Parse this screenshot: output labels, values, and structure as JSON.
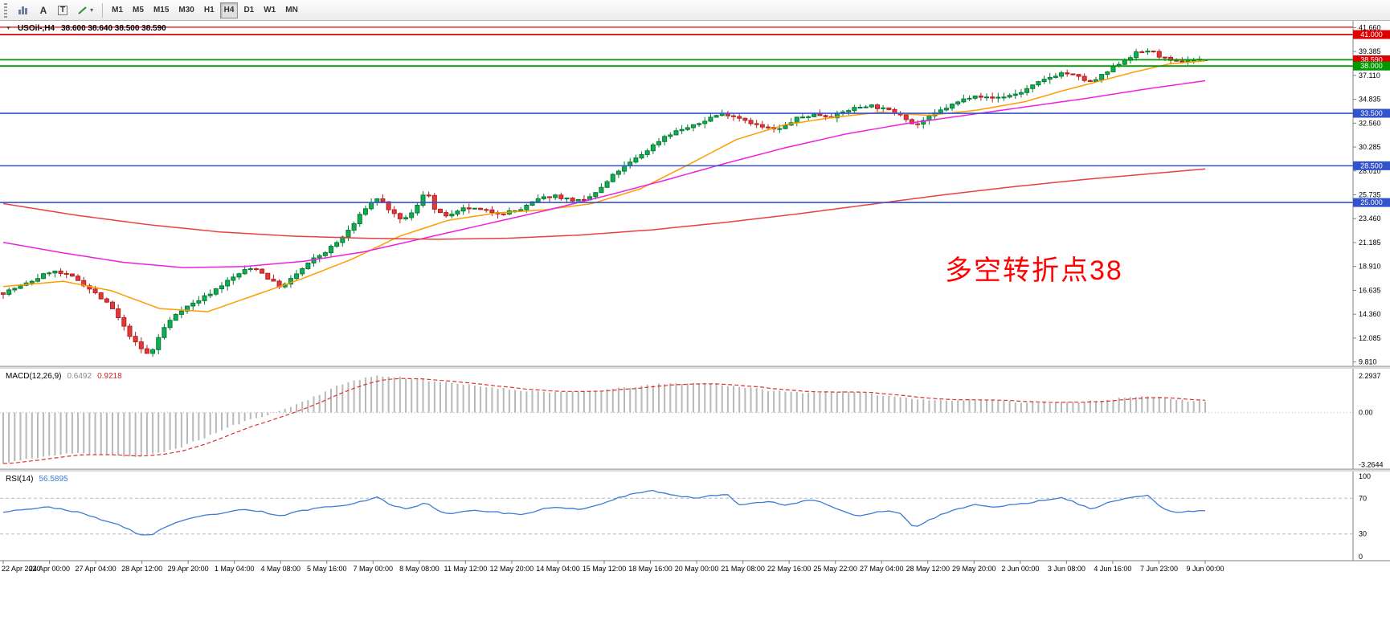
{
  "toolbar": {
    "tools": [
      {
        "name": "bar-chart"
      },
      {
        "name": "text-annotation",
        "glyph": "A"
      },
      {
        "name": "text-box",
        "glyph": "T"
      },
      {
        "name": "trendline",
        "caret": "▾"
      }
    ],
    "timeframes": [
      "M1",
      "M5",
      "M15",
      "M30",
      "H1",
      "H4",
      "D1",
      "W1",
      "MN"
    ],
    "active_timeframe": "H4"
  },
  "chart_header": {
    "symbol_period": "USOil-,H4",
    "ohlc": "38.600 38.640 38.500 38.590"
  },
  "annotation": {
    "text": "多空转折点38",
    "color": "#ff0000"
  },
  "price_axis": {
    "ticks": [
      "41.660",
      "39.385",
      "37.110",
      "34.835",
      "32.560",
      "30.285",
      "28.010",
      "25.735",
      "23.460",
      "21.185",
      "18.910",
      "16.635",
      "14.360",
      "12.085",
      "9.810"
    ],
    "badges": [
      {
        "text": "41.000",
        "price": 41.0,
        "color": "#dd0000"
      },
      {
        "text": "38.590",
        "price": 38.59,
        "color": "#dd0000"
      },
      {
        "text": "38.000",
        "price": 38.0,
        "color": "#009900"
      },
      {
        "text": "33.500",
        "price": 33.5,
        "color": "#3353cd"
      },
      {
        "text": "28.500",
        "price": 28.5,
        "color": "#3353cd"
      },
      {
        "text": "25.000",
        "price": 25.0,
        "color": "#3353cd"
      }
    ]
  },
  "hlines": [
    {
      "price": 41.7,
      "color": "#dd0000",
      "width": 1.3
    },
    {
      "price": 41.0,
      "color": "#dd0000",
      "width": 1.7
    },
    {
      "price": 38.6,
      "color": "#009900",
      "width": 1.8
    },
    {
      "price": 38.0,
      "color": "#009900",
      "width": 1.8
    },
    {
      "price": 33.5,
      "color": "#3353cd",
      "width": 1.6
    },
    {
      "price": 28.5,
      "color": "#3353cd",
      "width": 1.6
    },
    {
      "price": 25.0,
      "color": "#3353cd",
      "width": 1.6
    }
  ],
  "indicators": {
    "macd": {
      "name": "MACD(12,26,9)",
      "value_main": "0.6492",
      "value_signal": "0.9218"
    },
    "rsi": {
      "name": "RSI(14)",
      "value": "56.5895"
    }
  },
  "time_axis": {
    "labels": [
      "22 Apr 2020",
      "24 Apr 00:00",
      "27 Apr 04:00",
      "28 Apr 12:00",
      "29 Apr 20:00",
      "1 May 04:00",
      "4 May 08:00",
      "5 May 16:00",
      "7 May 00:00",
      "8 May 08:00",
      "11 May 12:00",
      "12 May 20:00",
      "14 May 04:00",
      "15 May 12:00",
      "18 May 16:00",
      "20 May 00:00",
      "21 May 08:00",
      "22 May 16:00",
      "25 May 22:00",
      "27 May 04:00",
      "28 May 12:00",
      "29 May 20:00",
      "2 Jun 00:00",
      "3 Jun 08:00",
      "4 Jun 16:00",
      "7 Jun 23:00",
      "9 Jun 00:00"
    ]
  },
  "chart_data": {
    "type": "candlestick",
    "symbol": "USOil-",
    "timeframe": "H4",
    "y_axis_range": [
      9.4,
      42.3
    ],
    "candle_count": 210,
    "wick_amp": 0.45,
    "ohlc_current": {
      "open": 38.6,
      "high": 38.64,
      "low": 38.5,
      "close": 38.59
    },
    "candle_colors": {
      "up": {
        "fill": "#12ad52",
        "border": "#067a34"
      },
      "down": {
        "fill": "#e23a3a",
        "border": "#b51f1f"
      }
    },
    "close_anchors": [
      [
        0,
        16.4
      ],
      [
        0.02,
        17.3
      ],
      [
        0.04,
        18.5
      ],
      [
        0.06,
        17.8
      ],
      [
        0.075,
        16.5
      ],
      [
        0.09,
        15.0
      ],
      [
        0.1,
        13.2
      ],
      [
        0.112,
        11.3
      ],
      [
        0.122,
        10.4
      ],
      [
        0.132,
        12.8
      ],
      [
        0.145,
        14.6
      ],
      [
        0.158,
        15.4
      ],
      [
        0.17,
        16.2
      ],
      [
        0.185,
        17.4
      ],
      [
        0.2,
        18.5
      ],
      [
        0.21,
        18.8
      ],
      [
        0.222,
        17.6
      ],
      [
        0.232,
        16.9
      ],
      [
        0.245,
        18.3
      ],
      [
        0.258,
        19.6
      ],
      [
        0.268,
        20.3
      ],
      [
        0.28,
        21.4
      ],
      [
        0.292,
        23.0
      ],
      [
        0.302,
        24.6
      ],
      [
        0.312,
        25.5
      ],
      [
        0.322,
        24.2
      ],
      [
        0.33,
        23.3
      ],
      [
        0.342,
        24.1
      ],
      [
        0.352,
        26.4
      ],
      [
        0.36,
        24.0
      ],
      [
        0.372,
        23.7
      ],
      [
        0.385,
        24.5
      ],
      [
        0.4,
        24.2
      ],
      [
        0.415,
        24.0
      ],
      [
        0.43,
        24.3
      ],
      [
        0.445,
        25.3
      ],
      [
        0.458,
        25.7
      ],
      [
        0.47,
        25.3
      ],
      [
        0.483,
        25.1
      ],
      [
        0.497,
        26.3
      ],
      [
        0.51,
        27.9
      ],
      [
        0.523,
        28.9
      ],
      [
        0.537,
        30.1
      ],
      [
        0.55,
        31.3
      ],
      [
        0.562,
        31.9
      ],
      [
        0.575,
        32.3
      ],
      [
        0.59,
        33.2
      ],
      [
        0.6,
        33.5
      ],
      [
        0.615,
        33.0
      ],
      [
        0.63,
        32.2
      ],
      [
        0.645,
        31.9
      ],
      [
        0.66,
        33.0
      ],
      [
        0.675,
        33.4
      ],
      [
        0.69,
        33.2
      ],
      [
        0.705,
        33.9
      ],
      [
        0.72,
        34.3
      ],
      [
        0.735,
        33.8
      ],
      [
        0.748,
        33.4
      ],
      [
        0.758,
        32.3
      ],
      [
        0.77,
        33.1
      ],
      [
        0.782,
        33.9
      ],
      [
        0.795,
        34.6
      ],
      [
        0.808,
        35.3
      ],
      [
        0.82,
        34.9
      ],
      [
        0.833,
        35.1
      ],
      [
        0.845,
        35.4
      ],
      [
        0.858,
        36.2
      ],
      [
        0.87,
        36.9
      ],
      [
        0.882,
        37.4
      ],
      [
        0.895,
        36.9
      ],
      [
        0.905,
        36.4
      ],
      [
        0.917,
        37.3
      ],
      [
        0.93,
        38.4
      ],
      [
        0.942,
        39.2
      ],
      [
        0.953,
        39.5
      ],
      [
        0.963,
        38.9
      ],
      [
        0.973,
        38.3
      ],
      [
        0.985,
        38.6
      ],
      [
        1,
        38.59
      ]
    ],
    "moving_averages": [
      {
        "name": "fast",
        "color": "#ff9c00",
        "anchors": [
          [
            0,
            17.0
          ],
          [
            0.05,
            17.5
          ],
          [
            0.09,
            16.6
          ],
          [
            0.13,
            14.9
          ],
          [
            0.17,
            14.6
          ],
          [
            0.21,
            16.2
          ],
          [
            0.25,
            17.8
          ],
          [
            0.29,
            19.6
          ],
          [
            0.33,
            21.8
          ],
          [
            0.37,
            23.3
          ],
          [
            0.41,
            24.0
          ],
          [
            0.45,
            24.3
          ],
          [
            0.49,
            24.9
          ],
          [
            0.53,
            26.3
          ],
          [
            0.57,
            28.6
          ],
          [
            0.61,
            31.0
          ],
          [
            0.65,
            32.4
          ],
          [
            0.69,
            33.1
          ],
          [
            0.73,
            33.6
          ],
          [
            0.77,
            33.3
          ],
          [
            0.81,
            33.8
          ],
          [
            0.85,
            34.6
          ],
          [
            0.88,
            35.6
          ],
          [
            0.91,
            36.5
          ],
          [
            0.94,
            37.4
          ],
          [
            0.97,
            38.2
          ],
          [
            1,
            38.5
          ]
        ]
      },
      {
        "name": "mid",
        "color": "#f020e0",
        "anchors": [
          [
            0,
            21.2
          ],
          [
            0.05,
            20.2
          ],
          [
            0.1,
            19.3
          ],
          [
            0.15,
            18.8
          ],
          [
            0.2,
            18.9
          ],
          [
            0.25,
            19.4
          ],
          [
            0.3,
            20.3
          ],
          [
            0.35,
            21.6
          ],
          [
            0.4,
            22.9
          ],
          [
            0.45,
            24.2
          ],
          [
            0.5,
            25.6
          ],
          [
            0.55,
            27.1
          ],
          [
            0.6,
            28.7
          ],
          [
            0.65,
            30.2
          ],
          [
            0.7,
            31.5
          ],
          [
            0.75,
            32.5
          ],
          [
            0.8,
            33.3
          ],
          [
            0.85,
            34.1
          ],
          [
            0.9,
            34.9
          ],
          [
            0.95,
            35.8
          ],
          [
            1,
            36.6
          ]
        ]
      },
      {
        "name": "slow",
        "color": "#e84040",
        "anchors": [
          [
            0,
            24.9
          ],
          [
            0.06,
            23.8
          ],
          [
            0.12,
            22.9
          ],
          [
            0.18,
            22.2
          ],
          [
            0.24,
            21.8
          ],
          [
            0.3,
            21.6
          ],
          [
            0.36,
            21.5
          ],
          [
            0.42,
            21.6
          ],
          [
            0.48,
            21.9
          ],
          [
            0.54,
            22.4
          ],
          [
            0.6,
            23.1
          ],
          [
            0.66,
            23.9
          ],
          [
            0.72,
            24.8
          ],
          [
            0.78,
            25.7
          ],
          [
            0.84,
            26.5
          ],
          [
            0.9,
            27.2
          ],
          [
            0.95,
            27.7
          ],
          [
            1,
            28.2
          ]
        ]
      }
    ],
    "macd": {
      "range": [
        -3.55,
        2.75
      ],
      "scale_labels": [
        "2.2937",
        "0.00",
        "-3.2644"
      ],
      "scale_values": [
        2.2937,
        0,
        -3.2644
      ],
      "histogram_color": "#b8b8b8",
      "signal_color": "#e03030",
      "anchors": [
        [
          0,
          -3.2
        ],
        [
          0.03,
          -2.8
        ],
        [
          0.06,
          -2.55
        ],
        [
          0.09,
          -2.65
        ],
        [
          0.11,
          -2.8
        ],
        [
          0.13,
          -2.55
        ],
        [
          0.15,
          -2.1
        ],
        [
          0.17,
          -1.5
        ],
        [
          0.19,
          -0.85
        ],
        [
          0.21,
          -0.35
        ],
        [
          0.23,
          0.1
        ],
        [
          0.25,
          0.7
        ],
        [
          0.27,
          1.4
        ],
        [
          0.29,
          2.0
        ],
        [
          0.31,
          2.3
        ],
        [
          0.33,
          2.2
        ],
        [
          0.35,
          2.05
        ],
        [
          0.37,
          1.85
        ],
        [
          0.39,
          1.7
        ],
        [
          0.41,
          1.55
        ],
        [
          0.43,
          1.4
        ],
        [
          0.45,
          1.3
        ],
        [
          0.47,
          1.25
        ],
        [
          0.49,
          1.35
        ],
        [
          0.51,
          1.5
        ],
        [
          0.53,
          1.65
        ],
        [
          0.55,
          1.8
        ],
        [
          0.57,
          1.85
        ],
        [
          0.59,
          1.8
        ],
        [
          0.61,
          1.65
        ],
        [
          0.63,
          1.45
        ],
        [
          0.65,
          1.3
        ],
        [
          0.67,
          1.25
        ],
        [
          0.69,
          1.3
        ],
        [
          0.71,
          1.25
        ],
        [
          0.73,
          1.1
        ],
        [
          0.75,
          0.95
        ],
        [
          0.77,
          0.8
        ],
        [
          0.79,
          0.75
        ],
        [
          0.81,
          0.8
        ],
        [
          0.83,
          0.75
        ],
        [
          0.85,
          0.65
        ],
        [
          0.87,
          0.6
        ],
        [
          0.89,
          0.65
        ],
        [
          0.91,
          0.75
        ],
        [
          0.93,
          0.9
        ],
        [
          0.95,
          1.0
        ],
        [
          0.97,
          0.9
        ],
        [
          0.985,
          0.75
        ],
        [
          1,
          0.6492
        ]
      ]
    },
    "rsi": {
      "color": "#3b7bd4",
      "levels": [
        70,
        30
      ],
      "scale_labels": [
        "100",
        "70",
        "30",
        "0"
      ],
      "scale_values": [
        100,
        70,
        30,
        0
      ],
      "anchors": [
        [
          0,
          55
        ],
        [
          0.02,
          58
        ],
        [
          0.04,
          60
        ],
        [
          0.06,
          55
        ],
        [
          0.08,
          47
        ],
        [
          0.1,
          38
        ],
        [
          0.112,
          30
        ],
        [
          0.122,
          28
        ],
        [
          0.135,
          38
        ],
        [
          0.15,
          45
        ],
        [
          0.165,
          50
        ],
        [
          0.18,
          53
        ],
        [
          0.2,
          57
        ],
        [
          0.215,
          55
        ],
        [
          0.23,
          50
        ],
        [
          0.245,
          55
        ],
        [
          0.26,
          59
        ],
        [
          0.275,
          61
        ],
        [
          0.29,
          64
        ],
        [
          0.302,
          68
        ],
        [
          0.312,
          71
        ],
        [
          0.322,
          63
        ],
        [
          0.335,
          58
        ],
        [
          0.352,
          65
        ],
        [
          0.362,
          55
        ],
        [
          0.375,
          53
        ],
        [
          0.39,
          57
        ],
        [
          0.405,
          55
        ],
        [
          0.42,
          53
        ],
        [
          0.435,
          52
        ],
        [
          0.45,
          58
        ],
        [
          0.465,
          60
        ],
        [
          0.48,
          57
        ],
        [
          0.497,
          63
        ],
        [
          0.51,
          70
        ],
        [
          0.525,
          75
        ],
        [
          0.537,
          79
        ],
        [
          0.55,
          76
        ],
        [
          0.562,
          73
        ],
        [
          0.575,
          70
        ],
        [
          0.59,
          73
        ],
        [
          0.602,
          75
        ],
        [
          0.613,
          62
        ],
        [
          0.625,
          65
        ],
        [
          0.637,
          67
        ],
        [
          0.65,
          62
        ],
        [
          0.663,
          66
        ],
        [
          0.675,
          68
        ],
        [
          0.687,
          62
        ],
        [
          0.7,
          55
        ],
        [
          0.71,
          50
        ],
        [
          0.72,
          53
        ],
        [
          0.735,
          56
        ],
        [
          0.748,
          52
        ],
        [
          0.758,
          36
        ],
        [
          0.77,
          45
        ],
        [
          0.782,
          53
        ],
        [
          0.795,
          58
        ],
        [
          0.808,
          63
        ],
        [
          0.82,
          60
        ],
        [
          0.833,
          62
        ],
        [
          0.845,
          63
        ],
        [
          0.858,
          66
        ],
        [
          0.87,
          69
        ],
        [
          0.882,
          71
        ],
        [
          0.895,
          63
        ],
        [
          0.905,
          58
        ],
        [
          0.917,
          64
        ],
        [
          0.93,
          69
        ],
        [
          0.942,
          72
        ],
        [
          0.953,
          73
        ],
        [
          0.963,
          60
        ],
        [
          0.973,
          54
        ],
        [
          0.985,
          55
        ],
        [
          1,
          56.59
        ]
      ]
    }
  }
}
